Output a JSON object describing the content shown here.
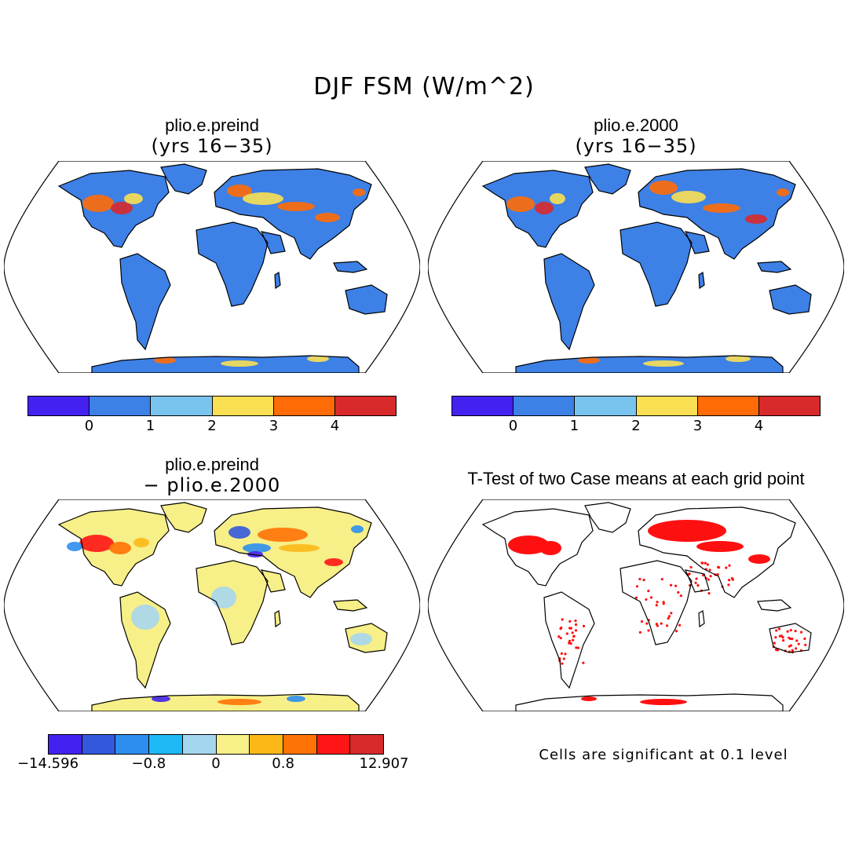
{
  "figure": {
    "title": "DJF FSM (W/m^2)"
  },
  "panels": [
    {
      "title": "plio.e.preind",
      "subtitle": "(yrs 16−35)",
      "kind": "field",
      "base_color": "#3d80e6",
      "colorbar": {
        "colors": [
          "#4321f0",
          "#3d80e6",
          "#79c4ee",
          "#fadf52",
          "#ff6b07",
          "#d8292b"
        ],
        "tick_labels": [
          "0",
          "1",
          "2",
          "3",
          "4"
        ]
      }
    },
    {
      "title": "plio.e.2000",
      "subtitle": "(yrs 16−35)",
      "kind": "field",
      "base_color": "#3d80e6",
      "colorbar": {
        "colors": [
          "#4321f0",
          "#3d80e6",
          "#79c4ee",
          "#fadf52",
          "#ff6b07",
          "#d8292b"
        ],
        "tick_labels": [
          "0",
          "1",
          "2",
          "3",
          "4"
        ]
      }
    },
    {
      "title": "plio.e.preind",
      "subtitle": "− plio.e.2000",
      "kind": "difference",
      "base_color": "#f7ef87",
      "colorbar": {
        "colors": [
          "#4321f0",
          "#3358dd",
          "#2d8ef0",
          "#1cb9f4",
          "#a5d6ef",
          "#f7ef87",
          "#fbb817",
          "#ff7205",
          "#ff1515",
          "#d8292b"
        ],
        "tick_labels": [
          "−14.596",
          "−0.8",
          "0",
          "0.8",
          "12.907"
        ]
      }
    },
    {
      "title": "T-Test of two Case means at each grid point",
      "subtitle": "",
      "kind": "significance",
      "base_color": "#ffffff",
      "note": "Cells are significant at 0.1 level",
      "signif_color": "#ff1010"
    }
  ]
}
